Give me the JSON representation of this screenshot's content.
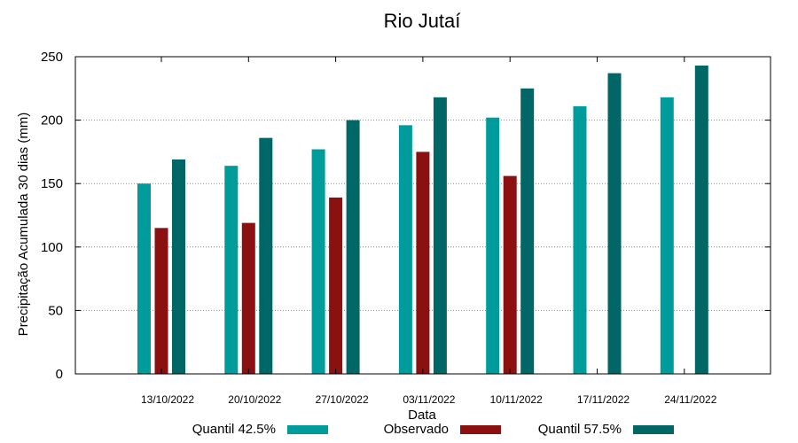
{
  "chart_data": {
    "type": "bar",
    "title": "Rio Jutaí",
    "xlabel": "Data",
    "ylabel": "Precipitação Acumulada 30 dias (mm)",
    "ylim": [
      0,
      250
    ],
    "yticks": [
      0,
      50,
      100,
      150,
      200,
      250
    ],
    "grid": true,
    "legend_position": "bottom",
    "categories": [
      "13/10/2022",
      "20/10/2022",
      "27/10/2022",
      "03/11/2022",
      "10/11/2022",
      "17/11/2022",
      "24/11/2022"
    ],
    "series": [
      {
        "name": "Quantil 42.5%",
        "color": "#009c9c",
        "values": [
          150,
          164,
          177,
          196,
          202,
          211,
          218
        ]
      },
      {
        "name": "Observado",
        "color": "#8b1010",
        "values": [
          115,
          119,
          139,
          175,
          156,
          null,
          null
        ]
      },
      {
        "name": "Quantil 57.5%",
        "color": "#006666",
        "values": [
          169,
          186,
          200,
          218,
          225,
          237,
          243
        ]
      }
    ]
  }
}
